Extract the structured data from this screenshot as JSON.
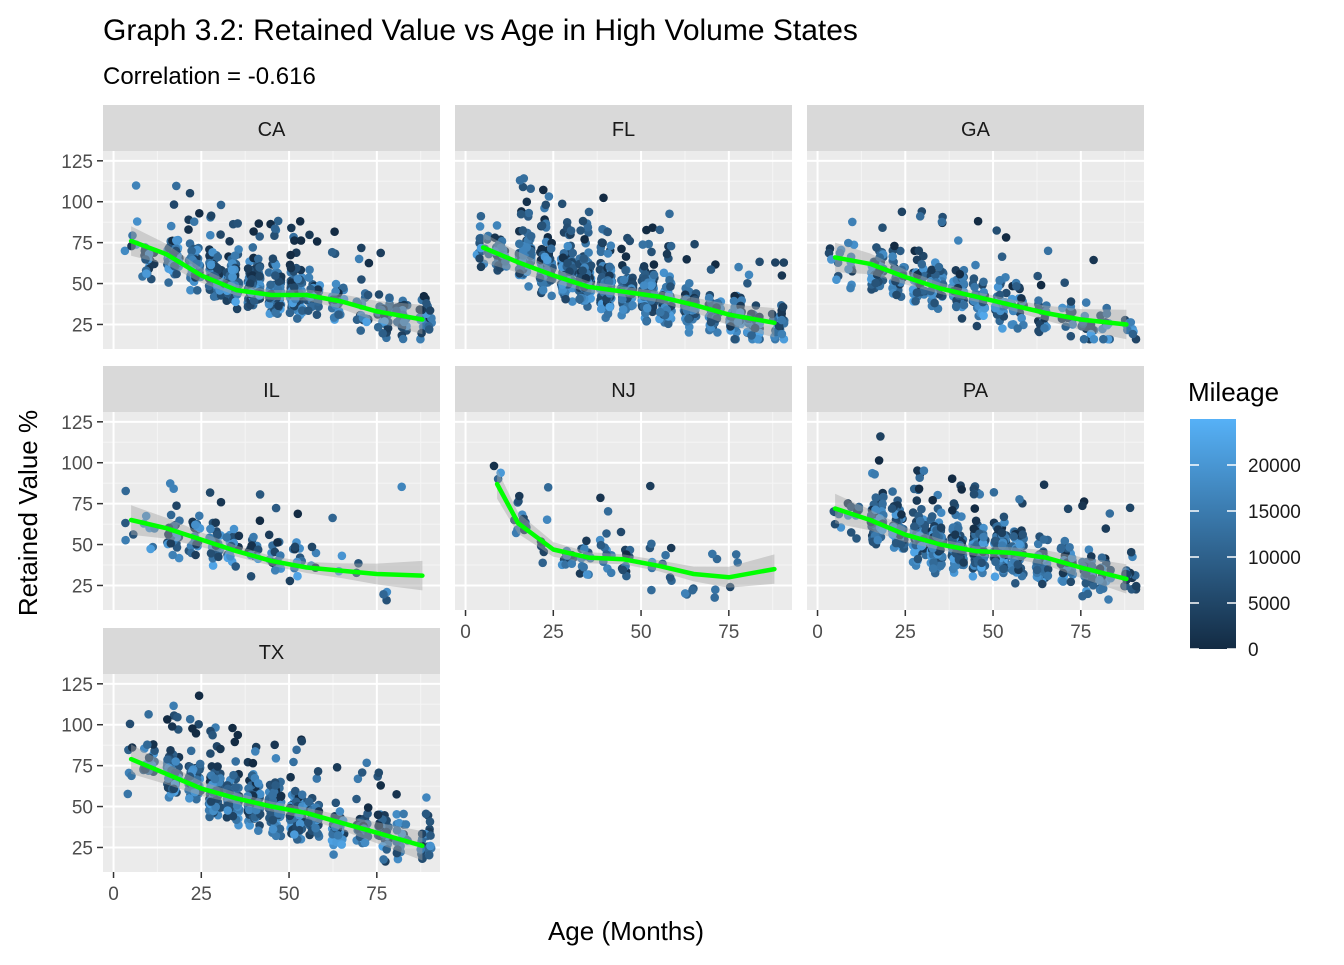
{
  "chart_data": {
    "type": "scatter",
    "title": "Graph 3.2: Retained Value vs Age in High Volume States",
    "subtitle": "Correlation = -0.616",
    "xlabel": "Age (Months)",
    "ylabel": "Retained Value %",
    "xlim": [
      -3,
      93
    ],
    "ylim": [
      10,
      131
    ],
    "x_ticks": [
      0,
      25,
      50,
      75
    ],
    "y_ticks": [
      25,
      50,
      75,
      100,
      125
    ],
    "grid": true,
    "facet_layout": "wrap, 3 columns",
    "legend": {
      "title": "Mileage",
      "placement": "right",
      "type": "continuous color bar",
      "ticks": [
        0,
        5000,
        10000,
        15000,
        20000
      ],
      "range": [
        0,
        25000
      ],
      "low_color": "#132B43",
      "high_color": "#56B1F7"
    },
    "smooth_color": "#00FF00",
    "ribbon_color": "#BEBEBE",
    "panels": [
      {
        "label": "CA",
        "smooth": [
          [
            5,
            76
          ],
          [
            15,
            68
          ],
          [
            25,
            55
          ],
          [
            35,
            46
          ],
          [
            45,
            43
          ],
          [
            55,
            43
          ],
          [
            65,
            39
          ],
          [
            75,
            33
          ],
          [
            88,
            28
          ]
        ],
        "clusters": [
          [
            5,
            77,
            6
          ],
          [
            10,
            62,
            18
          ],
          [
            17,
            68,
            65
          ],
          [
            23,
            62,
            55
          ],
          [
            29,
            56,
            70
          ],
          [
            34,
            52,
            70
          ],
          [
            40,
            48,
            95
          ],
          [
            46,
            45,
            80
          ],
          [
            52,
            44,
            80
          ],
          [
            57,
            42,
            40
          ],
          [
            64,
            37,
            28
          ],
          [
            71,
            36,
            22
          ],
          [
            77,
            30,
            28
          ],
          [
            82,
            29,
            20
          ],
          [
            89,
            26,
            25
          ]
        ]
      },
      {
        "label": "FL",
        "smooth": [
          [
            5,
            72
          ],
          [
            15,
            63
          ],
          [
            25,
            55
          ],
          [
            35,
            48
          ],
          [
            45,
            45
          ],
          [
            55,
            42
          ],
          [
            65,
            37
          ],
          [
            75,
            31
          ],
          [
            88,
            26
          ]
        ],
        "clusters": [
          [
            5,
            73,
            18
          ],
          [
            10,
            68,
            25
          ],
          [
            17,
            66,
            85
          ],
          [
            23,
            60,
            80
          ],
          [
            29,
            56,
            100
          ],
          [
            34,
            52,
            100
          ],
          [
            40,
            47,
            110
          ],
          [
            46,
            46,
            100
          ],
          [
            52,
            43,
            95
          ],
          [
            57,
            40,
            60
          ],
          [
            64,
            36,
            50
          ],
          [
            71,
            33,
            40
          ],
          [
            77,
            29,
            42
          ],
          [
            82,
            26,
            30
          ],
          [
            89,
            24,
            25
          ]
        ]
      },
      {
        "label": "GA",
        "smooth": [
          [
            5,
            66
          ],
          [
            15,
            62
          ],
          [
            25,
            54
          ],
          [
            35,
            47
          ],
          [
            45,
            42
          ],
          [
            55,
            37
          ],
          [
            65,
            32
          ],
          [
            75,
            28
          ],
          [
            88,
            25
          ]
        ],
        "clusters": [
          [
            5,
            66,
            8
          ],
          [
            10,
            62,
            10
          ],
          [
            17,
            60,
            40
          ],
          [
            23,
            55,
            30
          ],
          [
            29,
            52,
            45
          ],
          [
            34,
            48,
            35
          ],
          [
            40,
            45,
            40
          ],
          [
            46,
            41,
            35
          ],
          [
            52,
            38,
            30
          ],
          [
            57,
            35,
            22
          ],
          [
            64,
            31,
            20
          ],
          [
            71,
            29,
            12
          ],
          [
            77,
            26,
            14
          ],
          [
            82,
            24,
            10
          ],
          [
            89,
            25,
            10
          ]
        ]
      },
      {
        "label": "IL",
        "smooth": [
          [
            5,
            65
          ],
          [
            15,
            60
          ],
          [
            25,
            53
          ],
          [
            35,
            46
          ],
          [
            45,
            40
          ],
          [
            55,
            36
          ],
          [
            65,
            34
          ],
          [
            75,
            32
          ],
          [
            88,
            31
          ]
        ],
        "clusters": [
          [
            5,
            62,
            4
          ],
          [
            10,
            60,
            6
          ],
          [
            17,
            57,
            24
          ],
          [
            23,
            55,
            20
          ],
          [
            29,
            50,
            24
          ],
          [
            34,
            48,
            18
          ],
          [
            40,
            46,
            14
          ],
          [
            46,
            41,
            16
          ],
          [
            52,
            38,
            12
          ],
          [
            57,
            33,
            4
          ],
          [
            64,
            35,
            3
          ],
          [
            71,
            30,
            2
          ],
          [
            77,
            22,
            3
          ],
          [
            82,
            82,
            1
          ]
        ]
      },
      {
        "label": "NJ",
        "smooth": [
          [
            9,
            87
          ],
          [
            15,
            63
          ],
          [
            25,
            47
          ],
          [
            35,
            42
          ],
          [
            45,
            41
          ],
          [
            55,
            37
          ],
          [
            65,
            32
          ],
          [
            75,
            30
          ],
          [
            88,
            35
          ]
        ],
        "clusters": [
          [
            9,
            95,
            3
          ],
          [
            15,
            70,
            8
          ],
          [
            17,
            62,
            6
          ],
          [
            22,
            48,
            6
          ],
          [
            29,
            42,
            10
          ],
          [
            34,
            40,
            14
          ],
          [
            40,
            41,
            12
          ],
          [
            46,
            37,
            12
          ],
          [
            52,
            38,
            6
          ],
          [
            57,
            36,
            5
          ],
          [
            64,
            30,
            4
          ],
          [
            71,
            30,
            4
          ],
          [
            77,
            30,
            3
          ]
        ]
      },
      {
        "label": "PA",
        "smooth": [
          [
            5,
            72
          ],
          [
            15,
            65
          ],
          [
            25,
            56
          ],
          [
            35,
            50
          ],
          [
            45,
            46
          ],
          [
            55,
            45
          ],
          [
            65,
            42
          ],
          [
            75,
            36
          ],
          [
            88,
            29
          ]
        ],
        "clusters": [
          [
            5,
            72,
            5
          ],
          [
            10,
            68,
            10
          ],
          [
            17,
            66,
            70
          ],
          [
            23,
            60,
            55
          ],
          [
            29,
            54,
            80
          ],
          [
            34,
            50,
            85
          ],
          [
            40,
            48,
            110
          ],
          [
            46,
            47,
            100
          ],
          [
            52,
            45,
            100
          ],
          [
            57,
            44,
            50
          ],
          [
            64,
            40,
            45
          ],
          [
            71,
            38,
            30
          ],
          [
            77,
            33,
            32
          ],
          [
            82,
            30,
            20
          ],
          [
            89,
            30,
            20
          ]
        ]
      },
      {
        "label": "TX",
        "smooth": [
          [
            5,
            79
          ],
          [
            15,
            70
          ],
          [
            25,
            61
          ],
          [
            35,
            55
          ],
          [
            45,
            50
          ],
          [
            55,
            46
          ],
          [
            65,
            40
          ],
          [
            75,
            34
          ],
          [
            88,
            26
          ]
        ],
        "clusters": [
          [
            5,
            72,
            6
          ],
          [
            10,
            80,
            18
          ],
          [
            17,
            70,
            60
          ],
          [
            23,
            66,
            60
          ],
          [
            29,
            60,
            75
          ],
          [
            34,
            55,
            80
          ],
          [
            40,
            51,
            80
          ],
          [
            46,
            48,
            75
          ],
          [
            52,
            45,
            80
          ],
          [
            57,
            43,
            45
          ],
          [
            64,
            38,
            40
          ],
          [
            71,
            36,
            30
          ],
          [
            77,
            32,
            32
          ],
          [
            82,
            30,
            20
          ],
          [
            89,
            28,
            25
          ]
        ]
      }
    ]
  }
}
